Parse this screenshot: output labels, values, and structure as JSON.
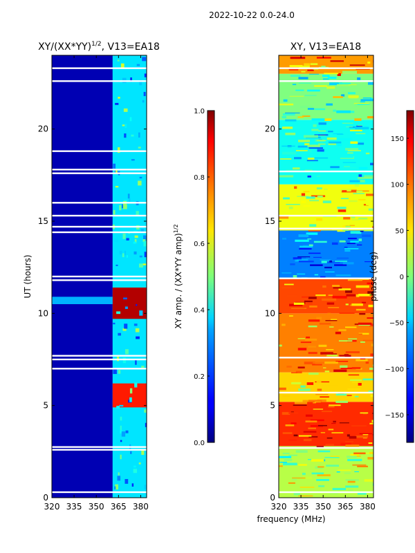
{
  "suptitle": "2022-10-22 0.0-24.0",
  "xlabel_shared": "frequency (MHz)",
  "chart_data": [
    {
      "type": "heatmap",
      "title_main": "XY/(XX*YY)",
      "title_sup": "1/2",
      "title_rest": ", V13=EA18",
      "ylabel": "UT (hours)",
      "xlim": [
        320,
        384
      ],
      "ylim": [
        0,
        24
      ],
      "xticks": [
        320,
        335,
        350,
        365,
        380
      ],
      "yticks": [
        0,
        5,
        10,
        15,
        20
      ],
      "colorbar": {
        "label_main": "XY amp. / (XX*YY amp)",
        "label_sup": "1/2",
        "range": [
          0.0,
          1.0
        ],
        "ticks": [
          "0.0",
          "0.2",
          "0.4",
          "0.6",
          "0.8",
          "1.0"
        ],
        "tick_values": [
          0.0,
          0.2,
          0.4,
          0.6,
          0.8,
          1.0
        ],
        "colormap": "jet"
      },
      "background_value": 0.05,
      "features": [
        {
          "x": [
            361,
            384
          ],
          "y": [
            0,
            24
          ],
          "value": 0.35
        },
        {
          "x": [
            361,
            384
          ],
          "y": [
            9.7,
            11.4
          ],
          "value": 0.95
        },
        {
          "x": [
            361,
            384
          ],
          "y": [
            4.9,
            6.2
          ],
          "value": 0.85
        },
        {
          "x": [
            320,
            361
          ],
          "y": [
            10.5,
            10.9
          ],
          "value": 0.3
        }
      ],
      "gap_hours": [
        0.3,
        2.6,
        2.75,
        7.0,
        7.5,
        7.7,
        11.8,
        12.0,
        14.4,
        14.7,
        15.3,
        16.0,
        17.6,
        17.8,
        18.8,
        22.6,
        23.3
      ]
    },
    {
      "type": "heatmap",
      "title": "XY, V13=EA18",
      "xlim": [
        320,
        384
      ],
      "ylim": [
        0,
        24
      ],
      "xticks": [
        320,
        335,
        350,
        365,
        380
      ],
      "yticks": [
        0,
        5,
        10,
        15,
        20
      ],
      "colorbar": {
        "label": "phase (deg)",
        "range": [
          -180,
          180
        ],
        "ticks": [
          "−150",
          "−100",
          "−50",
          "0",
          "50",
          "100",
          "150"
        ],
        "tick_values": [
          -150,
          -100,
          -50,
          0,
          50,
          100,
          150
        ],
        "colormap": "jet"
      },
      "bands": [
        {
          "y": [
            0,
            2.8
          ],
          "value": 20
        },
        {
          "y": [
            2.8,
            5.2
          ],
          "value": 120
        },
        {
          "y": [
            5.2,
            6.8
          ],
          "value": 60
        },
        {
          "y": [
            6.8,
            10.0
          ],
          "value": 90
        },
        {
          "y": [
            10.0,
            11.9
          ],
          "value": 110
        },
        {
          "y": [
            11.9,
            14.5
          ],
          "value": -90
        },
        {
          "y": [
            14.5,
            17.0
          ],
          "value": 40
        },
        {
          "y": [
            17.0,
            20.5
          ],
          "value": -40
        },
        {
          "y": [
            20.5,
            23.0
          ],
          "value": 0
        },
        {
          "y": [
            23.0,
            24.0
          ],
          "value": 80
        }
      ],
      "gap_hours": [
        0.3,
        2.7,
        5.7,
        7.6,
        11.9,
        14.6,
        15.3,
        17.7,
        22.6,
        23.3
      ]
    }
  ]
}
